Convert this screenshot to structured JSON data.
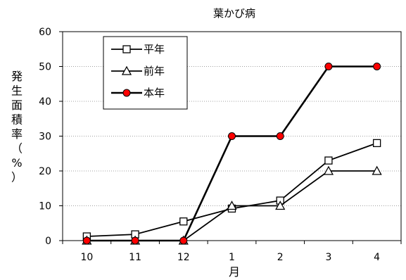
{
  "chart_data": {
    "type": "line",
    "title": "葉かび病",
    "xlabel": "月",
    "ylabel_chars": [
      "発",
      "生",
      "面",
      "積",
      "率",
      "（",
      "%",
      "）"
    ],
    "categories": [
      "10",
      "11",
      "12",
      "1",
      "2",
      "3",
      "4"
    ],
    "ylim": [
      0,
      60
    ],
    "yticks": [
      "0",
      "10",
      "20",
      "30",
      "40",
      "50",
      "60"
    ],
    "grid": true,
    "legend_position": "top-left",
    "series": [
      {
        "name": "平年",
        "marker": "square-open",
        "color": "#000000",
        "values": [
          1.2,
          1.8,
          5.5,
          9.2,
          11.5,
          23,
          28
        ]
      },
      {
        "name": "前年",
        "marker": "triangle-open",
        "color": "#000000",
        "values": [
          0,
          0,
          0,
          10,
          10,
          20,
          20
        ]
      },
      {
        "name": "本年",
        "marker": "circle-filled",
        "color": "#ff0000",
        "line_color": "#000000",
        "values": [
          0,
          0,
          0,
          30,
          30,
          50,
          50
        ]
      }
    ]
  }
}
